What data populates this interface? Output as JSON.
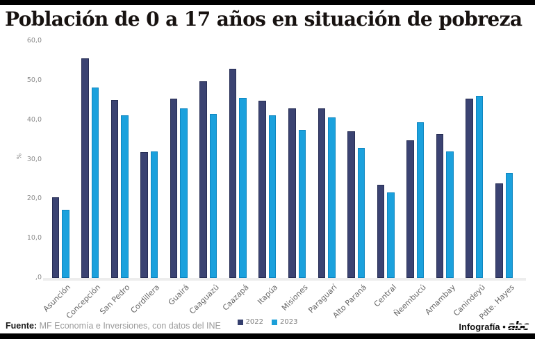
{
  "title": "Población de 0 a 17 años en situación de pobreza",
  "chart_data": {
    "type": "bar",
    "title": "Población de 0 a 17 años en situación de pobreza",
    "xlabel": "",
    "ylabel": "%",
    "ylim": [
      0,
      60
    ],
    "yticks": [
      ",0",
      "10,0",
      "20,0",
      "30,0",
      "40,0",
      "50,0",
      "60,0"
    ],
    "grid": false,
    "legend_position": "bottom-center",
    "categories": [
      "Asunción",
      "Concepción",
      "San Pedro",
      "Cordillera",
      "Guairá",
      "Caaguazú",
      "Caazapá",
      "Itapúa",
      "Misiones",
      "Paraguarí",
      "Alto Paraná",
      "Central",
      "Ñeembucú",
      "Amambay",
      "Canindeyú",
      "Pdte. Hayes"
    ],
    "series": [
      {
        "name": "2022",
        "color": "#3b4372",
        "values": [
          20.5,
          55.7,
          45.1,
          31.8,
          45.5,
          49.8,
          53.0,
          45.0,
          42.9,
          43.0,
          37.1,
          23.6,
          34.8,
          36.5,
          45.4,
          23.9
        ]
      },
      {
        "name": "2023",
        "color": "#1ba1dd",
        "values": [
          17.2,
          48.2,
          41.2,
          32.1,
          43.0,
          41.5,
          45.6,
          41.3,
          37.6,
          40.7,
          33.0,
          21.6,
          39.5,
          32.0,
          46.1,
          26.6
        ]
      }
    ]
  },
  "footer": {
    "source_label": "Fuente:",
    "source_text": " MF Economía e Inversiones, con datos del INE",
    "credit_label": "Infografía •",
    "brand": "abc"
  }
}
